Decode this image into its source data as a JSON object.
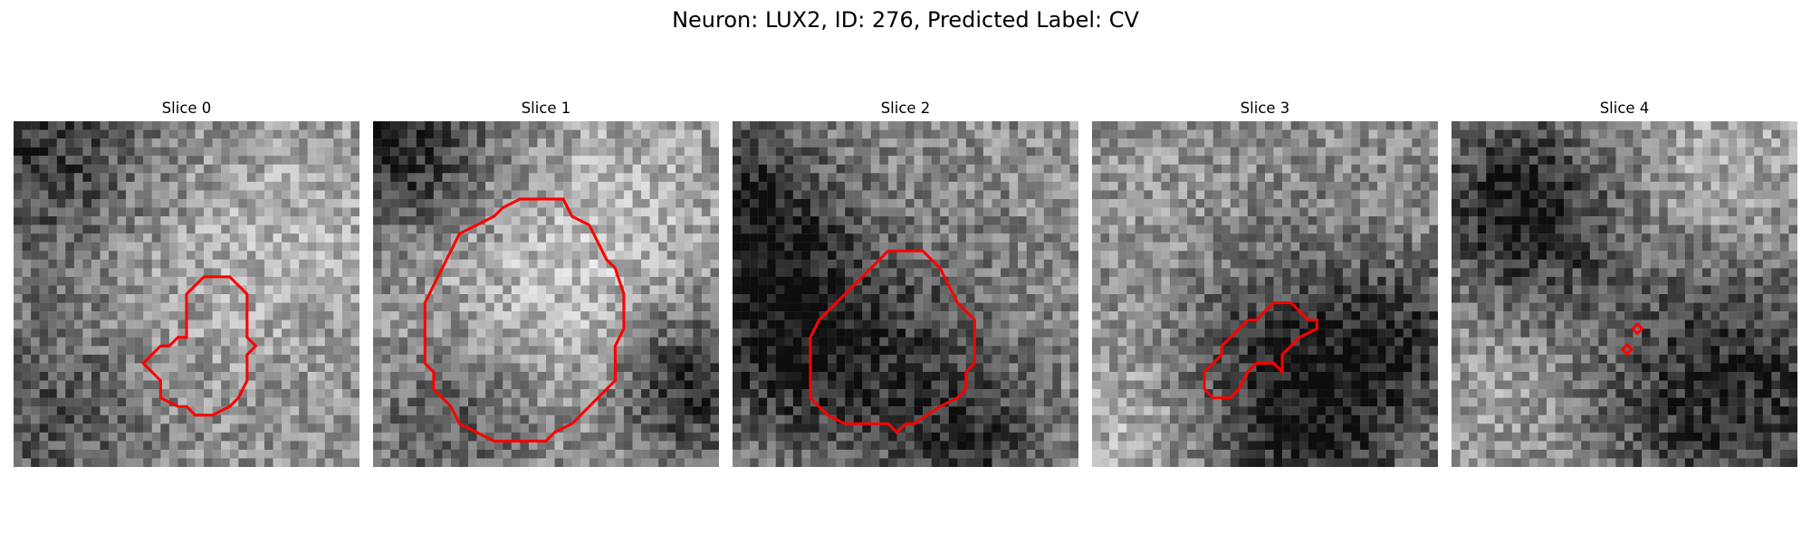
{
  "figure": {
    "title": "Neuron: LUX2, ID: 276, Predicted Label: CV"
  },
  "panels": [
    {
      "title": "Slice 0",
      "seed": 11,
      "mask": [
        [
          22,
          18
        ],
        [
          25,
          18
        ],
        [
          27,
          20
        ],
        [
          27,
          25
        ],
        [
          28,
          26
        ],
        [
          27,
          27
        ],
        [
          27,
          30
        ],
        [
          26,
          32
        ],
        [
          25,
          33
        ],
        [
          23,
          34
        ],
        [
          21,
          34
        ],
        [
          20,
          33
        ],
        [
          19,
          33
        ],
        [
          17,
          32
        ],
        [
          17,
          30
        ],
        [
          16,
          29
        ],
        [
          15,
          28
        ],
        [
          16,
          27
        ],
        [
          17,
          26
        ],
        [
          18,
          26
        ],
        [
          19,
          25
        ],
        [
          20,
          25
        ],
        [
          20,
          20
        ]
      ]
    },
    {
      "title": "Slice 1",
      "seed": 23,
      "mask": [
        [
          17,
          9
        ],
        [
          22,
          9
        ],
        [
          23,
          11
        ],
        [
          25,
          12
        ],
        [
          26,
          14
        ],
        [
          27,
          16
        ],
        [
          28,
          17
        ],
        [
          29,
          20
        ],
        [
          29,
          24
        ],
        [
          28,
          26
        ],
        [
          28,
          30
        ],
        [
          26,
          32
        ],
        [
          24,
          34
        ],
        [
          23,
          35
        ],
        [
          21,
          36
        ],
        [
          20,
          37
        ],
        [
          14,
          37
        ],
        [
          12,
          36
        ],
        [
          10,
          35
        ],
        [
          9,
          33
        ],
        [
          8,
          32
        ],
        [
          7,
          31
        ],
        [
          7,
          29
        ],
        [
          6,
          28
        ],
        [
          6,
          25
        ],
        [
          6,
          21
        ],
        [
          7,
          19
        ],
        [
          8,
          17
        ],
        [
          9,
          15
        ],
        [
          10,
          13
        ],
        [
          12,
          12
        ],
        [
          14,
          11
        ],
        [
          15,
          10
        ]
      ]
    },
    {
      "title": "Slice 2",
      "seed": 37,
      "mask": [
        [
          18,
          15
        ],
        [
          22,
          15
        ],
        [
          23,
          16
        ],
        [
          24,
          17
        ],
        [
          25,
          19
        ],
        [
          26,
          21
        ],
        [
          28,
          23
        ],
        [
          28,
          28
        ],
        [
          27,
          29
        ],
        [
          27,
          31
        ],
        [
          26,
          32
        ],
        [
          24,
          33
        ],
        [
          21,
          35
        ],
        [
          20,
          35
        ],
        [
          19,
          36
        ],
        [
          18,
          35
        ],
        [
          13,
          35
        ],
        [
          11,
          34
        ],
        [
          10,
          33
        ],
        [
          9,
          32
        ],
        [
          9,
          29
        ],
        [
          9,
          25
        ],
        [
          10,
          23
        ],
        [
          11,
          22
        ],
        [
          13,
          20
        ],
        [
          15,
          18
        ],
        [
          16,
          17
        ]
      ]
    },
    {
      "title": "Slice 3",
      "seed": 53,
      "mask": [
        [
          21,
          21
        ],
        [
          23,
          21
        ],
        [
          24,
          22
        ],
        [
          25,
          23
        ],
        [
          26,
          23
        ],
        [
          26,
          24
        ],
        [
          24,
          25
        ],
        [
          23,
          26
        ],
        [
          22,
          27
        ],
        [
          22,
          29
        ],
        [
          21,
          28
        ],
        [
          19,
          28
        ],
        [
          18,
          29
        ],
        [
          17,
          31
        ],
        [
          16,
          32
        ],
        [
          14,
          32
        ],
        [
          13,
          31
        ],
        [
          13,
          29
        ],
        [
          14,
          28
        ],
        [
          15,
          27
        ],
        [
          15,
          26
        ],
        [
          17,
          24
        ],
        [
          18,
          23
        ],
        [
          19,
          23
        ],
        [
          20,
          22
        ]
      ]
    },
    {
      "title": "Slice 4",
      "seed": 71,
      "diamonds": [
        [
          21.5,
          24
        ],
        [
          20.3,
          26.4
        ]
      ]
    }
  ]
}
